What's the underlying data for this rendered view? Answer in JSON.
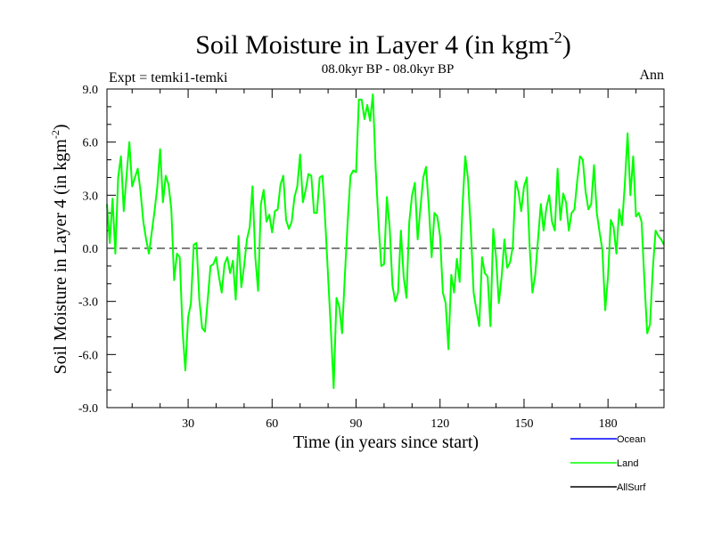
{
  "chart_data": {
    "type": "line",
    "title_main": "Soil Moisture in Layer 4 (in kgm",
    "title_sup": "-2",
    "title_close": ")",
    "subtitle": "08.0kyr BP - 08.0kyr BP",
    "left_label": "Expt = temki1-temki",
    "right_label": "Ann",
    "xlabel": "Time (in years since start)",
    "ylabel_main": "Soil Moisture in Layer 4 (in kgm",
    "ylabel_sup": "-2",
    "ylabel_close": ")",
    "xlim": [
      1,
      200
    ],
    "ylim": [
      -9,
      9
    ],
    "xticks": [
      30,
      60,
      90,
      120,
      150,
      180
    ],
    "xtick_labels": [
      "30",
      "60",
      "90",
      "120",
      "150",
      "180"
    ],
    "yticks": [
      -9,
      -6,
      -3,
      0,
      3,
      6,
      9
    ],
    "ytick_labels": [
      "-9.0",
      "-6.0",
      "-3.0",
      "0.0",
      "3.0",
      "6.0",
      "9.0"
    ],
    "zero_line": true,
    "legend": [
      {
        "name": "Ocean",
        "color": "#0000ff"
      },
      {
        "name": "Land",
        "color": "#00ff00"
      },
      {
        "name": "AllSurf",
        "color": "#000000"
      }
    ],
    "series": [
      {
        "name": "Land",
        "color": "#00ff00",
        "x_start": 1,
        "x_step": 1,
        "values": [
          2.5,
          0.3,
          2.8,
          -0.3,
          4.0,
          5.2,
          2.1,
          4.1,
          6.0,
          3.5,
          4.0,
          4.5,
          3.2,
          1.5,
          0.5,
          -0.3,
          0.9,
          2.1,
          3.5,
          5.6,
          2.6,
          4.1,
          3.6,
          2.2,
          -1.8,
          -0.3,
          -0.5,
          -4.6,
          -6.9,
          -3.9,
          -3.1,
          0.2,
          0.3,
          -2.9,
          -4.5,
          -4.7,
          -2.9,
          -1.0,
          -0.9,
          -0.5,
          -1.6,
          -2.5,
          -0.9,
          -0.5,
          -1.4,
          -0.7,
          -2.9,
          0.7,
          -2.2,
          -1.0,
          0.5,
          1.2,
          3.5,
          -0.5,
          -2.4,
          2.5,
          3.3,
          1.5,
          1.9,
          0.9,
          2.1,
          2.2,
          3.6,
          4.1,
          1.6,
          1.1,
          1.5,
          2.9,
          3.5,
          5.3,
          2.6,
          3.3,
          4.2,
          4.1,
          2.0,
          2.0,
          4.0,
          4.1,
          1.5,
          -1.6,
          -4.6,
          -7.9,
          -2.8,
          -3.3,
          -4.8,
          -1.5,
          1.5,
          4.1,
          4.4,
          4.3,
          8.4,
          8.4,
          7.3,
          8.1,
          7.2,
          8.7,
          4.5,
          1.5,
          -1.0,
          -0.9,
          2.9,
          1.2,
          -2.1,
          -3.0,
          -2.5,
          1.0,
          -1.6,
          -2.8,
          1.5,
          3.0,
          3.7,
          0.5,
          2.3,
          4.0,
          4.6,
          2.3,
          -0.5,
          2.0,
          1.8,
          0.7,
          -2.5,
          -3.1,
          -5.7,
          -1.5,
          -2.5,
          -0.6,
          -1.9,
          2.3,
          5.2,
          3.9,
          1.0,
          -2.5,
          -3.5,
          -4.4,
          -0.5,
          -1.4,
          -1.6,
          -4.4,
          1.1,
          -0.5,
          -3.1,
          -1.6,
          0.5,
          -1.1,
          -0.8,
          0.1,
          3.8,
          3.2,
          2.1,
          3.5,
          4.0,
          0.1,
          -2.5,
          -1.5,
          0.5,
          2.5,
          1.0,
          2.3,
          3.0,
          1.5,
          1.0,
          4.5,
          1.6,
          3.1,
          2.6,
          1.0,
          2.0,
          2.2,
          3.8,
          5.2,
          5.0,
          3.2,
          2.2,
          2.5,
          4.7,
          2.0,
          0.9,
          -0.1,
          -3.5,
          -1.6,
          1.6,
          1.2,
          -0.3,
          2.2,
          1.3,
          3.6,
          6.5,
          3.0,
          5.2,
          1.8,
          2.0,
          1.5,
          -1.8,
          -4.8,
          -4.3,
          -1.2,
          1.0,
          0.7,
          0.5,
          0.2
        ]
      }
    ]
  }
}
